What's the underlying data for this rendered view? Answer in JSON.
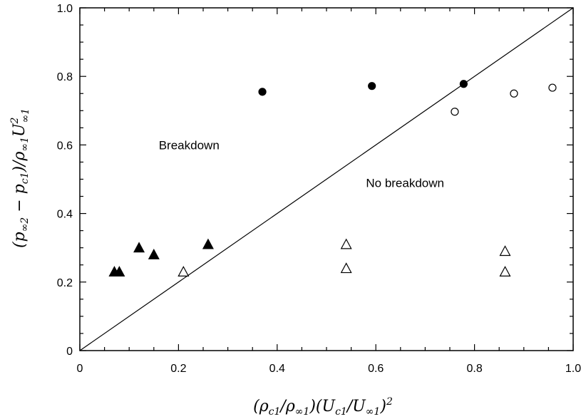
{
  "chart_data": {
    "type": "scatter",
    "title": "",
    "xlabel": "(ρc1/ρ∞1)(Uc1/U∞1)²",
    "ylabel": "(p∞2 − pc1)/ρ∞1U²∞1",
    "xlim": [
      0,
      1.0
    ],
    "ylim": [
      0,
      1.0
    ],
    "x_ticks": [
      0,
      0.2,
      0.4,
      0.6,
      0.8,
      1.0
    ],
    "y_ticks": [
      0,
      0.2,
      0.4,
      0.6,
      0.8,
      1.0
    ],
    "x_tick_labels": [
      "0",
      "0.2",
      "0.4",
      "0.6",
      "0.8",
      "1.0"
    ],
    "y_tick_labels": [
      "0",
      "0.2",
      "0.4",
      "0.6",
      "0.8",
      "1.0"
    ],
    "x_minor_step": 0.05,
    "y_minor_step": 0.05,
    "grid": false,
    "legend": "none",
    "annotations": [
      {
        "text": "Breakdown",
        "x": 0.16,
        "y": 0.6
      },
      {
        "text": "No breakdown",
        "x": 0.58,
        "y": 0.49
      }
    ],
    "lines": [
      {
        "x": [
          0,
          1.0
        ],
        "y": [
          0,
          1.0
        ]
      }
    ],
    "series": [
      {
        "marker": "circle",
        "filled": true,
        "points": [
          [
            0.37,
            0.755
          ],
          [
            0.592,
            0.772
          ],
          [
            0.778,
            0.778
          ]
        ]
      },
      {
        "marker": "circle",
        "filled": false,
        "points": [
          [
            0.76,
            0.697
          ],
          [
            0.88,
            0.75
          ],
          [
            0.958,
            0.767
          ]
        ]
      },
      {
        "marker": "triangle",
        "filled": true,
        "points": [
          [
            0.07,
            0.23
          ],
          [
            0.08,
            0.23
          ],
          [
            0.12,
            0.3
          ],
          [
            0.15,
            0.28
          ],
          [
            0.26,
            0.31
          ]
        ]
      },
      {
        "marker": "triangle",
        "filled": false,
        "points": [
          [
            0.21,
            0.23
          ],
          [
            0.54,
            0.31
          ],
          [
            0.54,
            0.24
          ],
          [
            0.862,
            0.29
          ],
          [
            0.862,
            0.23
          ]
        ]
      }
    ]
  }
}
